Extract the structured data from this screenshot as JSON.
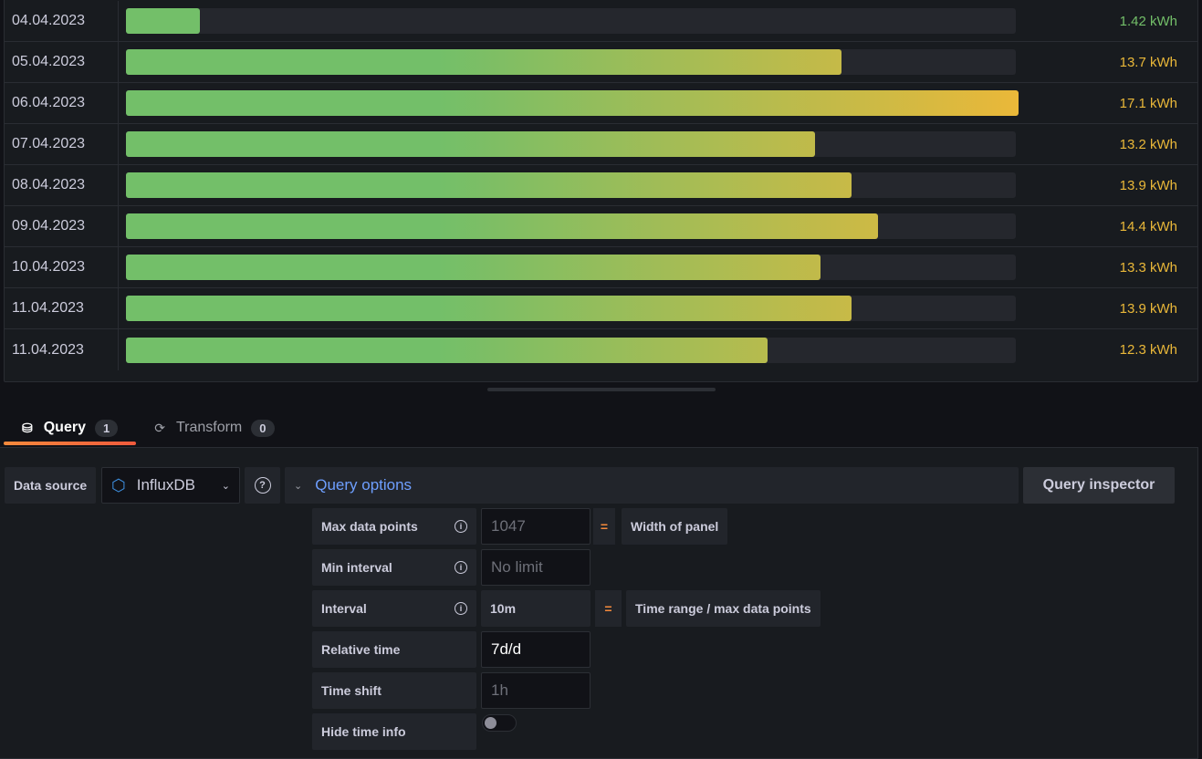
{
  "table": {
    "max": 17.1,
    "unit": "kWh",
    "rows": [
      {
        "date": "04.04.2023",
        "value": 1.42,
        "label": "1.42 kWh",
        "color": "#73bf69"
      },
      {
        "date": "05.04.2023",
        "value": 13.7,
        "label": "13.7 kWh",
        "color": "#eab839"
      },
      {
        "date": "06.04.2023",
        "value": 17.1,
        "label": "17.1 kWh",
        "color": "#eab839"
      },
      {
        "date": "07.04.2023",
        "value": 13.2,
        "label": "13.2 kWh",
        "color": "#eab839"
      },
      {
        "date": "08.04.2023",
        "value": 13.9,
        "label": "13.9 kWh",
        "color": "#eab839"
      },
      {
        "date": "09.04.2023",
        "value": 14.4,
        "label": "14.4 kWh",
        "color": "#eab839"
      },
      {
        "date": "10.04.2023",
        "value": 13.3,
        "label": "13.3 kWh",
        "color": "#eab839"
      },
      {
        "date": "11.04.2023",
        "value": 13.9,
        "label": "13.9 kWh",
        "color": "#eab839"
      },
      {
        "date": "11.04.2023",
        "value": 12.3,
        "label": "12.3 kWh",
        "color": "#eab839"
      }
    ]
  },
  "tabs": {
    "query": {
      "label": "Query",
      "count": "1"
    },
    "transform": {
      "label": "Transform",
      "count": "0"
    }
  },
  "editor": {
    "data_source_label": "Data source",
    "data_source": "InfluxDB",
    "query_options": "Query options",
    "query_inspector": "Query inspector",
    "options": {
      "max_data_points": {
        "label": "Max data points",
        "placeholder": "1047",
        "eq": "=",
        "note": "Width of panel"
      },
      "min_interval": {
        "label": "Min interval",
        "placeholder": "No limit"
      },
      "interval": {
        "label": "Interval",
        "value": "10m",
        "eq": "=",
        "note": "Time range / max data points"
      },
      "relative_time": {
        "label": "Relative time",
        "value": "7d/d"
      },
      "time_shift": {
        "label": "Time shift",
        "placeholder": "1h"
      },
      "hide_time_info": {
        "label": "Hide time info",
        "on": false
      }
    }
  }
}
